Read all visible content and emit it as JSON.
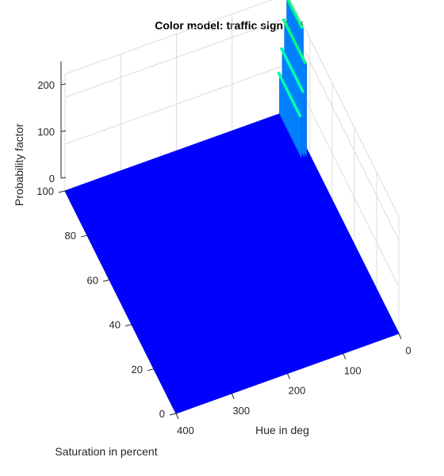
{
  "chart_data": {
    "type": "surface",
    "title": "Color model: traffic sign red",
    "xlabel": "Hue in deg",
    "ylabel": "Saturation in percent",
    "zlabel": "Probability factor",
    "xlim": [
      0,
      400
    ],
    "ylim": [
      0,
      100
    ],
    "zlim": [
      0,
      250
    ],
    "x_ticks": [
      "0",
      "100",
      "200",
      "300",
      "400"
    ],
    "y_ticks": [
      "0",
      "20",
      "40",
      "60",
      "80",
      "100"
    ],
    "z_ticks": [
      "0",
      "100",
      "200"
    ],
    "grid": true,
    "colormap": [
      "#0000ff",
      "#0080ff",
      "#00ffb0",
      "#00ff80"
    ],
    "surface": {
      "description_value_base": 0,
      "peaks": [
        {
          "hue": 2,
          "saturation_from": 85,
          "saturation_to": 100,
          "value": 250
        },
        {
          "hue": 6,
          "saturation_from": 80,
          "saturation_to": 100,
          "value": 200
        },
        {
          "hue": 10,
          "saturation_from": 80,
          "saturation_to": 100,
          "value": 140
        },
        {
          "hue": 15,
          "saturation_from": 80,
          "saturation_to": 100,
          "value": 90
        }
      ]
    }
  }
}
